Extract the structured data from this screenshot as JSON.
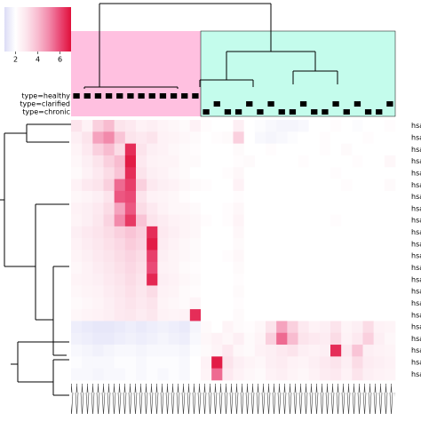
{
  "chart_data": {
    "type": "heatmap",
    "clim": [
      1,
      7
    ],
    "key_ticks": [
      2,
      4,
      6
    ],
    "colors": [
      "#dcdcf6",
      "#ffffff",
      "#fce4ec",
      "#f8bcd0",
      "#f28aab",
      "#ea4a76",
      "#e0103a"
    ],
    "group_colors": [
      "#ffc0e0",
      "#c4fcec"
    ],
    "row_labels": [
      "hsa",
      "hsa",
      "hsa",
      "hsa",
      "hsa",
      "hsa",
      "hsa",
      "hsa",
      "hsa",
      "hsa",
      "hsa",
      "hsa",
      "hsa",
      "hsa",
      "hsa",
      "hsa",
      "hsa",
      "hsa",
      "hsa",
      "hsa",
      "hsa",
      "hsa"
    ],
    "annotations": [
      {
        "name": "type=healthy",
        "values": [
          1,
          1,
          1,
          1,
          1,
          1,
          1,
          1,
          1,
          1,
          1,
          1,
          0,
          0,
          0,
          0,
          0,
          0,
          0,
          0,
          0,
          0,
          0,
          0,
          0,
          0,
          0,
          0,
          0,
          0
        ]
      },
      {
        "name": "type=clarified",
        "values": [
          0,
          0,
          0,
          0,
          0,
          0,
          0,
          0,
          0,
          0,
          0,
          0,
          0,
          1,
          0,
          0,
          1,
          0,
          1,
          0,
          0,
          1,
          0,
          0,
          1,
          0,
          1,
          0,
          0,
          1
        ]
      },
      {
        "name": "type=chronic",
        "values": [
          0,
          0,
          0,
          0,
          0,
          0,
          0,
          0,
          0,
          0,
          0,
          0,
          1,
          0,
          1,
          1,
          0,
          1,
          0,
          1,
          1,
          0,
          1,
          1,
          0,
          1,
          0,
          1,
          1,
          0
        ]
      }
    ],
    "values": [
      [
        3,
        2.5,
        3.5,
        4,
        3,
        2.8,
        2.5,
        2.6,
        2.4,
        2.3,
        2.2,
        2.5,
        2.1,
        2,
        2,
        2.6,
        2,
        1.9,
        1.8,
        1.7,
        1.7,
        1.8,
        2,
        2,
        2.1,
        2,
        1.9,
        2,
        2,
        2.1
      ],
      [
        2.6,
        3,
        4.5,
        5,
        3.8,
        3,
        2.8,
        3,
        2.5,
        2.4,
        2.3,
        2.2,
        2,
        2.1,
        2.2,
        3.5,
        2,
        1.8,
        1.7,
        1.8,
        1.9,
        2,
        2,
        2.1,
        2,
        2,
        2,
        2.1,
        2,
        2
      ],
      [
        2.4,
        2.8,
        3.5,
        4,
        3.2,
        6.5,
        3,
        2.6,
        2.5,
        2.3,
        2.2,
        2.1,
        2,
        2,
        2,
        2.2,
        2,
        2,
        2.1,
        2,
        2,
        2,
        2,
        2.1,
        2,
        2.2,
        2,
        2,
        2,
        2
      ],
      [
        2.3,
        2.6,
        3,
        3.5,
        4,
        6.8,
        2.8,
        2.5,
        2.4,
        2.4,
        2.2,
        2.2,
        2,
        2,
        2,
        2.1,
        2.2,
        2,
        2,
        2,
        2,
        2.1,
        2,
        2,
        2,
        2,
        2.1,
        2,
        2,
        2.3
      ],
      [
        2.2,
        2.5,
        2.8,
        3.2,
        3.8,
        6.5,
        3,
        2.6,
        2.5,
        2.3,
        2.2,
        2,
        2,
        2,
        2.1,
        2.3,
        2,
        2,
        2,
        2,
        2,
        2,
        2,
        2,
        2.1,
        2,
        2,
        2,
        2,
        2
      ],
      [
        2.5,
        2.8,
        3,
        3.5,
        5.5,
        6.2,
        3.5,
        2.8,
        2.6,
        2.5,
        2.3,
        2.2,
        2.1,
        2,
        2,
        2.5,
        2,
        2,
        2,
        2,
        2,
        2,
        2,
        2,
        2,
        2.1,
        2,
        2,
        2,
        2.2
      ],
      [
        2.3,
        2.4,
        2.6,
        3,
        5.8,
        6,
        3,
        2.5,
        2.4,
        2.3,
        2.1,
        2,
        2,
        2,
        2,
        2.1,
        2,
        2,
        2,
        2,
        2,
        2,
        2,
        2,
        2,
        2,
        2,
        2,
        2,
        2
      ],
      [
        2.5,
        2.6,
        2.8,
        3.2,
        4.5,
        5.8,
        3.2,
        2.8,
        2.5,
        2.3,
        2.3,
        2.2,
        2,
        2,
        2.1,
        2.3,
        2,
        2,
        2,
        2,
        2,
        2,
        2,
        2,
        2,
        2,
        2,
        2,
        2,
        2
      ],
      [
        2.4,
        2.6,
        2.9,
        3.4,
        5,
        6.3,
        3.8,
        3,
        2.7,
        2.5,
        2.4,
        2.3,
        2.1,
        2,
        2.1,
        2.4,
        2,
        2,
        2,
        2,
        2,
        2,
        2,
        2,
        2.1,
        2,
        2,
        2,
        2,
        2
      ],
      [
        2.6,
        2.8,
        3,
        3.2,
        3.5,
        3.8,
        3.5,
        6.5,
        2.8,
        2.6,
        2.4,
        2.3,
        2,
        2,
        2,
        2.3,
        2,
        2,
        2,
        2,
        2,
        2,
        2,
        2,
        2,
        2,
        2,
        2,
        2,
        2
      ],
      [
        2.5,
        2.7,
        2.9,
        3.1,
        3.3,
        3.6,
        3.4,
        6.8,
        2.7,
        2.5,
        2.3,
        2.2,
        2,
        2,
        2,
        2.2,
        2,
        2,
        2,
        2,
        2,
        2,
        2,
        2,
        2,
        2,
        2,
        2,
        2,
        2
      ],
      [
        2.4,
        2.6,
        2.8,
        3,
        3.2,
        3.4,
        3.2,
        6.2,
        2.6,
        2.4,
        2.3,
        2.2,
        2,
        2,
        2.1,
        2.3,
        2,
        2,
        2,
        2,
        2,
        2,
        2,
        2,
        2,
        2,
        2,
        2,
        2,
        2
      ],
      [
        2.3,
        2.5,
        2.7,
        2.9,
        3.1,
        3.3,
        3.1,
        6,
        2.5,
        2.4,
        2.2,
        2.1,
        2,
        2,
        2,
        2.2,
        2,
        2,
        2,
        2,
        2,
        2,
        2,
        2,
        2,
        2,
        2,
        2,
        2,
        2
      ],
      [
        2.4,
        2.5,
        2.6,
        2.8,
        3,
        3.2,
        3,
        6.6,
        2.6,
        2.5,
        2.3,
        2.2,
        2,
        2,
        2,
        2.1,
        2,
        2,
        2,
        2,
        2,
        2,
        2,
        2,
        2,
        2,
        2,
        2,
        2,
        2
      ],
      [
        2.3,
        2.4,
        2.5,
        2.7,
        2.9,
        3.1,
        2.9,
        3.2,
        2.5,
        2.4,
        2.2,
        2.1,
        2,
        2,
        2,
        2.2,
        2,
        2,
        2,
        2,
        2,
        2,
        2,
        2,
        2,
        2,
        2,
        2,
        2,
        2
      ],
      [
        2.2,
        2.3,
        2.4,
        2.6,
        2.8,
        3,
        2.8,
        3,
        2.4,
        2.3,
        2.2,
        2.4,
        2,
        2,
        2,
        2.1,
        2,
        2,
        2,
        2,
        2,
        2,
        2,
        2,
        2,
        2,
        2,
        2,
        2,
        2
      ],
      [
        2.3,
        2.4,
        2.5,
        2.6,
        2.8,
        2.9,
        2.7,
        2.9,
        2.5,
        2.4,
        2.5,
        6.5,
        2,
        2,
        2,
        2.2,
        2,
        2,
        2,
        2,
        2,
        2,
        2,
        2,
        2,
        2,
        2,
        2,
        2,
        2
      ],
      [
        1.5,
        1.4,
        1.3,
        1.3,
        1.4,
        1.5,
        1.4,
        1.5,
        1.6,
        1.5,
        1.4,
        1.7,
        2.2,
        2,
        2.4,
        2.2,
        2.1,
        2.3,
        3,
        4.5,
        3.5,
        2.8,
        2.5,
        2.6,
        3,
        2.4,
        2.6,
        3.2,
        2.5,
        2.4
      ],
      [
        1.6,
        1.5,
        1.4,
        1.4,
        1.5,
        1.6,
        1.5,
        1.6,
        1.7,
        1.6,
        1.5,
        1.8,
        2.3,
        2.5,
        2.3,
        2.6,
        2.2,
        2.4,
        3.5,
        5.5,
        4,
        3,
        2.8,
        2.7,
        3.2,
        2.5,
        2.8,
        3.5,
        2.6,
        2.3
      ],
      [
        1.8,
        1.7,
        1.6,
        1.7,
        1.8,
        1.8,
        1.7,
        1.8,
        1.8,
        1.8,
        1.7,
        1.9,
        2.2,
        2.4,
        2.8,
        2.3,
        2.2,
        2.5,
        2.6,
        2.8,
        3,
        2.6,
        2.5,
        2.6,
        6.5,
        2.8,
        3.8,
        2.6,
        2.5,
        2.4
      ],
      [
        1.9,
        1.8,
        1.8,
        1.8,
        1.9,
        1.9,
        1.8,
        1.9,
        1.9,
        1.9,
        1.8,
        2,
        2.5,
        6.8,
        3,
        2.6,
        2.4,
        2.3,
        2.6,
        2.7,
        2.5,
        2.4,
        2.6,
        2.8,
        3,
        2.6,
        3.2,
        2.7,
        2.6,
        2.5
      ],
      [
        1.8,
        1.8,
        1.7,
        1.8,
        1.8,
        1.9,
        1.8,
        1.9,
        1.8,
        1.9,
        1.8,
        2,
        2.4,
        5.5,
        2.8,
        2.5,
        2.3,
        2.2,
        2.5,
        2.6,
        2.4,
        2.3,
        2.5,
        2.7,
        2.8,
        2.5,
        3,
        2.6,
        2.5,
        2.4
      ]
    ]
  }
}
